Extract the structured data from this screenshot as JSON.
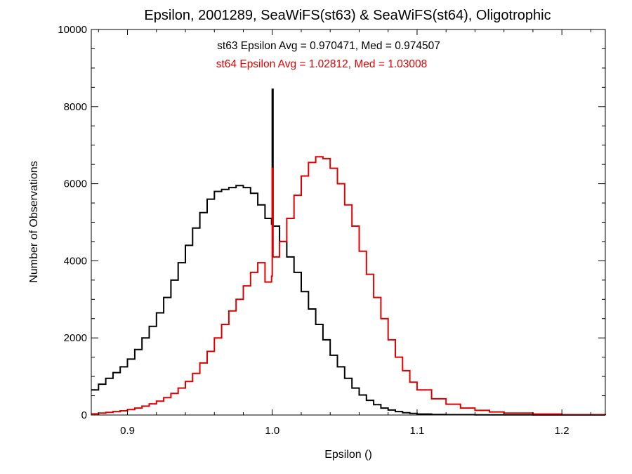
{
  "chart_data": {
    "type": "line",
    "title": "Epsilon, 2001289, SeaWiFS(st63) & SeaWiFS(st64), Oligotrophic",
    "xlabel": "Epsilon ()",
    "ylabel": "Number of Observations",
    "xlim": [
      0.875,
      1.23
    ],
    "ylim": [
      0,
      10000
    ],
    "x_ticks": [
      0.9,
      1.0,
      1.1,
      1.2
    ],
    "x_tick_labels": [
      "0.9",
      "1.0",
      "1.1",
      "1.2"
    ],
    "y_ticks": [
      0,
      2000,
      4000,
      6000,
      8000,
      10000
    ],
    "y_tick_labels": [
      "0",
      "2000",
      "4000",
      "6000",
      "8000",
      "10000"
    ],
    "grid": false,
    "legend": "none",
    "annotations": [
      {
        "text": "st63 Epsilon Avg = 0.970471, Med = 0.974507",
        "color": "#000000"
      },
      {
        "text": "st64 Epsilon Avg = 1.02812, Med = 1.03008",
        "color": "#e00000"
      }
    ],
    "series": [
      {
        "color": "#000000",
        "x": [
          0.875,
          0.88,
          0.885,
          0.89,
          0.895,
          0.9,
          0.905,
          0.91,
          0.915,
          0.92,
          0.925,
          0.93,
          0.935,
          0.94,
          0.945,
          0.95,
          0.955,
          0.96,
          0.965,
          0.97,
          0.975,
          0.98,
          0.985,
          0.99,
          0.995,
          0.9995,
          1.0,
          1.0005,
          1.005,
          1.01,
          1.015,
          1.02,
          1.025,
          1.03,
          1.035,
          1.04,
          1.045,
          1.05,
          1.055,
          1.06,
          1.065,
          1.07,
          1.075,
          1.08,
          1.085,
          1.09,
          1.095,
          1.1,
          1.11,
          1.12,
          1.14,
          1.16,
          1.18,
          1.2,
          1.23
        ],
        "y": [
          650,
          800,
          950,
          1100,
          1250,
          1450,
          1700,
          2000,
          2300,
          2650,
          3050,
          3500,
          3950,
          4400,
          4850,
          5250,
          5600,
          5800,
          5850,
          5900,
          5950,
          5900,
          5750,
          5450,
          5100,
          4950,
          8450,
          4900,
          4500,
          4100,
          3700,
          3200,
          2750,
          2350,
          1950,
          1550,
          1250,
          950,
          700,
          520,
          380,
          270,
          180,
          130,
          90,
          60,
          40,
          25,
          15,
          10,
          5,
          3,
          2,
          1,
          0
        ]
      },
      {
        "color": "#e00000",
        "x": [
          0.875,
          0.88,
          0.885,
          0.89,
          0.895,
          0.9,
          0.905,
          0.91,
          0.915,
          0.92,
          0.925,
          0.93,
          0.935,
          0.94,
          0.945,
          0.95,
          0.955,
          0.96,
          0.965,
          0.97,
          0.975,
          0.98,
          0.985,
          0.99,
          0.995,
          0.9995,
          1.0,
          1.0005,
          1.005,
          1.01,
          1.015,
          1.02,
          1.025,
          1.03,
          1.035,
          1.04,
          1.045,
          1.05,
          1.055,
          1.06,
          1.065,
          1.07,
          1.075,
          1.08,
          1.085,
          1.09,
          1.095,
          1.1,
          1.11,
          1.12,
          1.13,
          1.14,
          1.15,
          1.16,
          1.18,
          1.2,
          1.23
        ],
        "y": [
          30,
          50,
          70,
          90,
          110,
          140,
          180,
          230,
          290,
          360,
          450,
          560,
          700,
          870,
          1080,
          1350,
          1650,
          2000,
          2350,
          2700,
          3000,
          3350,
          3700,
          3950,
          3450,
          3600,
          6400,
          4100,
          4500,
          5100,
          5700,
          6200,
          6550,
          6700,
          6650,
          6400,
          6000,
          5450,
          4900,
          4250,
          3650,
          3050,
          2500,
          1950,
          1500,
          1150,
          850,
          650,
          420,
          280,
          180,
          120,
          80,
          50,
          25,
          10,
          0
        ]
      }
    ]
  }
}
